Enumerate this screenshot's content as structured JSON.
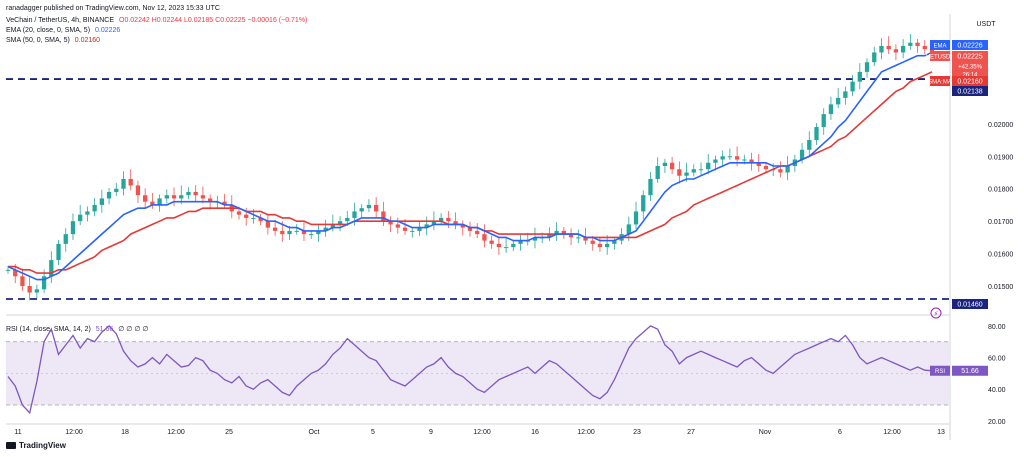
{
  "publisher": "ranadagger published on TradingView.com, Nov 12, 2023 15:33 UTC",
  "legend": {
    "symbol": "VeChain / TetherUS, 4h, BINANCE",
    "ohlc": "O0.02242 H0.02244 L0.02185 C0.02225 −0.00016 (−0.71%)",
    "ema_label": "EMA (20, close, 0, SMA, 5)",
    "ema_value": "0.02226",
    "sma_label": "SMA (50, 0, SMA, 5)",
    "sma_value": "0.02160",
    "rsi_label": "RSI (14, close, SMA, 14, 2)",
    "rsi_value": "51.66",
    "rsi_extra": "∅ ∅ ∅ ∅"
  },
  "branding": "TradingView",
  "colors": {
    "up": "#26a69a",
    "down": "#ef5350",
    "ema": "#2962ff",
    "sma": "#e53935",
    "rsi": "#7e57c2",
    "hline": "#1a237e",
    "rsi_band": "#ede7f6"
  },
  "chart_data": [
    {
      "type": "candlestick",
      "currency": "USDT",
      "ylim": [
        0.0142,
        0.0232
      ],
      "yticks": [
        "0.02000",
        "0.01900",
        "0.01800",
        "0.01700",
        "0.01600",
        "0.01500"
      ],
      "xticks": [
        "11",
        "12:00",
        "18",
        "12:00",
        "25",
        "Oct",
        "5",
        "9",
        "12:00",
        "16",
        "12:00",
        "23",
        "27",
        "Nov",
        "6",
        "12:00",
        "13"
      ],
      "horizontal_lines": [
        0.02138,
        0.0146
      ],
      "price_labels": [
        {
          "label": "EMA",
          "value": "0.02226"
        },
        {
          "label": "VETUSDT",
          "value": "0.02225",
          "extra": "+42.35%",
          "time": "26:14"
        },
        {
          "label": "SMA:MA",
          "value": "0.02160"
        },
        {
          "label": "",
          "value": "0.02138"
        },
        {
          "label": "",
          "value": "0.01460"
        }
      ],
      "close_series": [
        0.0155,
        0.0153,
        0.015,
        0.0148,
        0.0149,
        0.0153,
        0.0158,
        0.0163,
        0.0166,
        0.017,
        0.0172,
        0.0173,
        0.0175,
        0.0177,
        0.0179,
        0.018,
        0.0183,
        0.0181,
        0.0178,
        0.0176,
        0.0175,
        0.0177,
        0.0178,
        0.0177,
        0.0178,
        0.0179,
        0.0178,
        0.0177,
        0.0176,
        0.0176,
        0.0175,
        0.0173,
        0.0172,
        0.0171,
        0.0171,
        0.017,
        0.0168,
        0.0167,
        0.0166,
        0.0167,
        0.0167,
        0.0166,
        0.0166,
        0.0167,
        0.0168,
        0.0169,
        0.017,
        0.0171,
        0.0173,
        0.0174,
        0.0175,
        0.0173,
        0.017,
        0.0169,
        0.0168,
        0.0167,
        0.0167,
        0.0168,
        0.0169,
        0.017,
        0.0171,
        0.017,
        0.0169,
        0.0168,
        0.0167,
        0.0166,
        0.0164,
        0.0163,
        0.0162,
        0.0162,
        0.0163,
        0.0164,
        0.0164,
        0.0165,
        0.0165,
        0.0166,
        0.0167,
        0.0166,
        0.0165,
        0.0165,
        0.0164,
        0.0163,
        0.0162,
        0.0163,
        0.0164,
        0.0166,
        0.0169,
        0.0173,
        0.0178,
        0.0183,
        0.0187,
        0.0188,
        0.0186,
        0.0184,
        0.0185,
        0.0186,
        0.0186,
        0.0188,
        0.0189,
        0.019,
        0.019,
        0.0189,
        0.0189,
        0.0188,
        0.0187,
        0.0186,
        0.0186,
        0.0185,
        0.0187,
        0.0189,
        0.0192,
        0.0195,
        0.0199,
        0.0203,
        0.0206,
        0.0208,
        0.021,
        0.0213,
        0.0216,
        0.0219,
        0.0222,
        0.0224,
        0.0223,
        0.0222,
        0.0224,
        0.0225,
        0.0224,
        0.0223,
        0.0222
      ],
      "ema_series": [
        0.0156,
        0.0155,
        0.0154,
        0.0153,
        0.0152,
        0.0152,
        0.0153,
        0.0154,
        0.0156,
        0.0158,
        0.016,
        0.0162,
        0.0164,
        0.0166,
        0.0168,
        0.017,
        0.0172,
        0.0173,
        0.0174,
        0.0174,
        0.0175,
        0.0175,
        0.0175,
        0.0176,
        0.0176,
        0.0176,
        0.0176,
        0.0176,
        0.0176,
        0.0176,
        0.0175,
        0.0175,
        0.0174,
        0.0173,
        0.0172,
        0.0171,
        0.017,
        0.017,
        0.0169,
        0.0168,
        0.0168,
        0.0167,
        0.0167,
        0.0167,
        0.0167,
        0.0168,
        0.0168,
        0.0169,
        0.017,
        0.0171,
        0.0171,
        0.0171,
        0.0171,
        0.017,
        0.017,
        0.0169,
        0.0168,
        0.0168,
        0.0168,
        0.0169,
        0.0169,
        0.0169,
        0.0169,
        0.0169,
        0.0168,
        0.0168,
        0.0167,
        0.0166,
        0.0165,
        0.0165,
        0.0164,
        0.0164,
        0.0164,
        0.0165,
        0.0165,
        0.0165,
        0.0166,
        0.0166,
        0.0166,
        0.0166,
        0.0165,
        0.0165,
        0.0164,
        0.0164,
        0.0164,
        0.0165,
        0.0166,
        0.0167,
        0.017,
        0.0173,
        0.0176,
        0.0179,
        0.0181,
        0.0182,
        0.0183,
        0.0183,
        0.0184,
        0.0185,
        0.0186,
        0.0187,
        0.0188,
        0.0188,
        0.0188,
        0.0188,
        0.0188,
        0.0188,
        0.0187,
        0.0187,
        0.0187,
        0.0188,
        0.0189,
        0.019,
        0.0192,
        0.0194,
        0.0196,
        0.0199,
        0.0201,
        0.0204,
        0.0207,
        0.021,
        0.0213,
        0.0216,
        0.0217,
        0.0218,
        0.0219,
        0.022,
        0.0221,
        0.0221,
        0.0222
      ],
      "sma_series": [
        0.0156,
        0.0156,
        0.0155,
        0.0155,
        0.0154,
        0.0154,
        0.0154,
        0.0155,
        0.0155,
        0.0156,
        0.0157,
        0.0158,
        0.0159,
        0.0161,
        0.0162,
        0.0163,
        0.0164,
        0.0166,
        0.0167,
        0.0168,
        0.0169,
        0.017,
        0.0171,
        0.0171,
        0.0172,
        0.0173,
        0.0173,
        0.0174,
        0.0174,
        0.0174,
        0.0174,
        0.0174,
        0.0174,
        0.0173,
        0.0173,
        0.0173,
        0.0172,
        0.0172,
        0.0171,
        0.0171,
        0.017,
        0.017,
        0.0169,
        0.0169,
        0.0169,
        0.0169,
        0.0169,
        0.0169,
        0.017,
        0.017,
        0.017,
        0.017,
        0.017,
        0.017,
        0.017,
        0.017,
        0.017,
        0.017,
        0.017,
        0.017,
        0.017,
        0.0169,
        0.0169,
        0.0169,
        0.0168,
        0.0168,
        0.0167,
        0.0167,
        0.0166,
        0.0166,
        0.0166,
        0.0166,
        0.0166,
        0.0166,
        0.0166,
        0.0166,
        0.0166,
        0.0166,
        0.0166,
        0.0166,
        0.0165,
        0.0165,
        0.0165,
        0.0165,
        0.0165,
        0.0165,
        0.0165,
        0.0165,
        0.0166,
        0.0167,
        0.0168,
        0.0169,
        0.0171,
        0.0172,
        0.0173,
        0.0175,
        0.0176,
        0.0177,
        0.0178,
        0.0179,
        0.018,
        0.0181,
        0.0182,
        0.0183,
        0.0184,
        0.0185,
        0.0186,
        0.0187,
        0.0187,
        0.0188,
        0.0189,
        0.019,
        0.0191,
        0.0192,
        0.0193,
        0.0195,
        0.0196,
        0.0198,
        0.02,
        0.0202,
        0.0204,
        0.0206,
        0.0208,
        0.021,
        0.0211,
        0.0213,
        0.0214,
        0.0215,
        0.0216
      ]
    },
    {
      "type": "line",
      "name": "RSI",
      "ylim": [
        18,
        85
      ],
      "yticks": [
        "80.00",
        "60.00",
        "40.00",
        "20.00"
      ],
      "bands": [
        70,
        30
      ],
      "midline": 50,
      "current_value": "51.66",
      "rsi_series": [
        48,
        42,
        30,
        25,
        45,
        70,
        78,
        62,
        68,
        74,
        66,
        72,
        70,
        76,
        80,
        75,
        64,
        58,
        54,
        56,
        60,
        56,
        62,
        58,
        54,
        55,
        60,
        58,
        52,
        50,
        46,
        44,
        48,
        42,
        40,
        44,
        46,
        42,
        38,
        36,
        42,
        46,
        50,
        52,
        56,
        62,
        66,
        72,
        68,
        64,
        60,
        58,
        52,
        46,
        44,
        42,
        46,
        50,
        54,
        56,
        60,
        54,
        50,
        48,
        44,
        40,
        38,
        42,
        46,
        48,
        50,
        52,
        54,
        50,
        54,
        58,
        56,
        52,
        48,
        44,
        40,
        36,
        34,
        38,
        46,
        56,
        66,
        72,
        76,
        80,
        78,
        68,
        64,
        56,
        60,
        62,
        64,
        62,
        60,
        58,
        56,
        54,
        58,
        60,
        56,
        52,
        50,
        54,
        58,
        62,
        64,
        66,
        68,
        70,
        72,
        70,
        74,
        68,
        60,
        56,
        58,
        60,
        58,
        56,
        54,
        52,
        54,
        52,
        51.66
      ]
    }
  ]
}
